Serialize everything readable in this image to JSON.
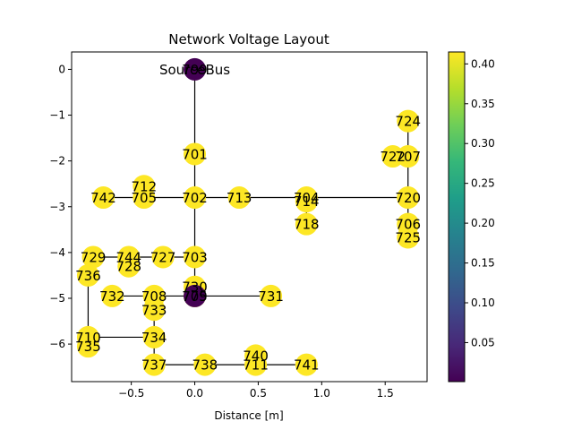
{
  "chart_data": {
    "type": "scatter",
    "title": "Network Voltage Layout",
    "xlabel": "Distance [m]",
    "ylabel": "",
    "xlim": [
      -0.97,
      1.83
    ],
    "ylim": [
      -6.82,
      0.38
    ],
    "xticks": [
      -0.5,
      0.0,
      0.5,
      1.0,
      1.5
    ],
    "xtick_labels": [
      "−0.5",
      "0.0",
      "0.5",
      "1.0",
      "1.5"
    ],
    "yticks": [
      0,
      -1,
      -2,
      -3,
      -4,
      -5,
      -6
    ],
    "ytick_labels": [
      "0",
      "−1",
      "−2",
      "−3",
      "−4",
      "−5",
      "−6"
    ],
    "colorbar": {
      "colormap": "viridis",
      "range": [
        0.001,
        0.415
      ],
      "ticks": [
        0.05,
        0.1,
        0.15,
        0.2,
        0.25,
        0.3,
        0.35,
        0.4
      ],
      "tick_labels": [
        "0.05",
        "0.10",
        "0.15",
        "0.20",
        "0.25",
        "0.30",
        "0.35",
        "0.40"
      ]
    },
    "annotations": [
      {
        "text": "SourceBus",
        "x": 0.0,
        "y": 0.0
      }
    ],
    "nodes": [
      {
        "name": "799",
        "x": 0.0,
        "y": 0.0,
        "value": 0.001
      },
      {
        "name": "701",
        "x": 0.0,
        "y": -1.85,
        "value": 0.415
      },
      {
        "name": "702",
        "x": 0.0,
        "y": -2.8,
        "value": 0.415
      },
      {
        "name": "713",
        "x": 0.35,
        "y": -2.8,
        "value": 0.415
      },
      {
        "name": "704",
        "x": 0.88,
        "y": -2.8,
        "value": 0.415
      },
      {
        "name": "714",
        "x": 0.88,
        "y": -2.88,
        "value": 0.415
      },
      {
        "name": "720",
        "x": 1.68,
        "y": -2.8,
        "value": 0.415
      },
      {
        "name": "718",
        "x": 0.88,
        "y": -3.38,
        "value": 0.415
      },
      {
        "name": "706",
        "x": 1.68,
        "y": -3.38,
        "value": 0.415
      },
      {
        "name": "725",
        "x": 1.68,
        "y": -3.67,
        "value": 0.415
      },
      {
        "name": "707",
        "x": 1.68,
        "y": -1.9,
        "value": 0.415
      },
      {
        "name": "722",
        "x": 1.56,
        "y": -1.9,
        "value": 0.415
      },
      {
        "name": "724",
        "x": 1.68,
        "y": -1.13,
        "value": 0.415
      },
      {
        "name": "705",
        "x": -0.4,
        "y": -2.8,
        "value": 0.415
      },
      {
        "name": "712",
        "x": -0.4,
        "y": -2.55,
        "value": 0.415
      },
      {
        "name": "742",
        "x": -0.72,
        "y": -2.8,
        "value": 0.415
      },
      {
        "name": "703",
        "x": 0.0,
        "y": -4.1,
        "value": 0.415
      },
      {
        "name": "727",
        "x": -0.25,
        "y": -4.1,
        "value": 0.415
      },
      {
        "name": "744",
        "x": -0.52,
        "y": -4.1,
        "value": 0.415
      },
      {
        "name": "728",
        "x": -0.52,
        "y": -4.3,
        "value": 0.415
      },
      {
        "name": "729",
        "x": -0.8,
        "y": -4.1,
        "value": 0.415
      },
      {
        "name": "736",
        "x": -0.84,
        "y": -4.5,
        "value": 0.415
      },
      {
        "name": "730",
        "x": 0.0,
        "y": -4.75,
        "value": 0.415
      },
      {
        "name": "709",
        "x": 0.0,
        "y": -4.95,
        "value": 0.415
      },
      {
        "name": "775",
        "x": 0.0,
        "y": -4.95,
        "value": 0.001
      },
      {
        "name": "731",
        "x": 0.6,
        "y": -4.95,
        "value": 0.415
      },
      {
        "name": "708",
        "x": -0.32,
        "y": -4.95,
        "value": 0.415
      },
      {
        "name": "732",
        "x": -0.65,
        "y": -4.95,
        "value": 0.415
      },
      {
        "name": "733",
        "x": -0.32,
        "y": -5.25,
        "value": 0.415
      },
      {
        "name": "734",
        "x": -0.32,
        "y": -5.85,
        "value": 0.415
      },
      {
        "name": "710",
        "x": -0.84,
        "y": -5.85,
        "value": 0.415
      },
      {
        "name": "735",
        "x": -0.84,
        "y": -6.05,
        "value": 0.415
      },
      {
        "name": "737",
        "x": -0.32,
        "y": -6.45,
        "value": 0.415
      },
      {
        "name": "738",
        "x": 0.08,
        "y": -6.45,
        "value": 0.415
      },
      {
        "name": "711",
        "x": 0.48,
        "y": -6.45,
        "value": 0.415
      },
      {
        "name": "740",
        "x": 0.48,
        "y": -6.25,
        "value": 0.415
      },
      {
        "name": "741",
        "x": 0.88,
        "y": -6.45,
        "value": 0.415
      }
    ],
    "edges": [
      [
        "799",
        "701"
      ],
      [
        "701",
        "702"
      ],
      [
        "702",
        "713"
      ],
      [
        "713",
        "704"
      ],
      [
        "704",
        "720"
      ],
      [
        "720",
        "706"
      ],
      [
        "706",
        "725"
      ],
      [
        "720",
        "707"
      ],
      [
        "707",
        "724"
      ],
      [
        "707",
        "722"
      ],
      [
        "704",
        "714"
      ],
      [
        "714",
        "718"
      ],
      [
        "702",
        "705"
      ],
      [
        "705",
        "742"
      ],
      [
        "705",
        "712"
      ],
      [
        "702",
        "703"
      ],
      [
        "703",
        "727"
      ],
      [
        "727",
        "744"
      ],
      [
        "744",
        "728"
      ],
      [
        "744",
        "729"
      ],
      [
        "729",
        "736"
      ],
      [
        "703",
        "730"
      ],
      [
        "730",
        "709"
      ],
      [
        "709",
        "731"
      ],
      [
        "709",
        "708"
      ],
      [
        "708",
        "732"
      ],
      [
        "708",
        "733"
      ],
      [
        "733",
        "734"
      ],
      [
        "734",
        "710"
      ],
      [
        "710",
        "736"
      ],
      [
        "710",
        "735"
      ],
      [
        "734",
        "737"
      ],
      [
        "737",
        "738"
      ],
      [
        "738",
        "711"
      ],
      [
        "711",
        "741"
      ],
      [
        "711",
        "740"
      ]
    ]
  }
}
